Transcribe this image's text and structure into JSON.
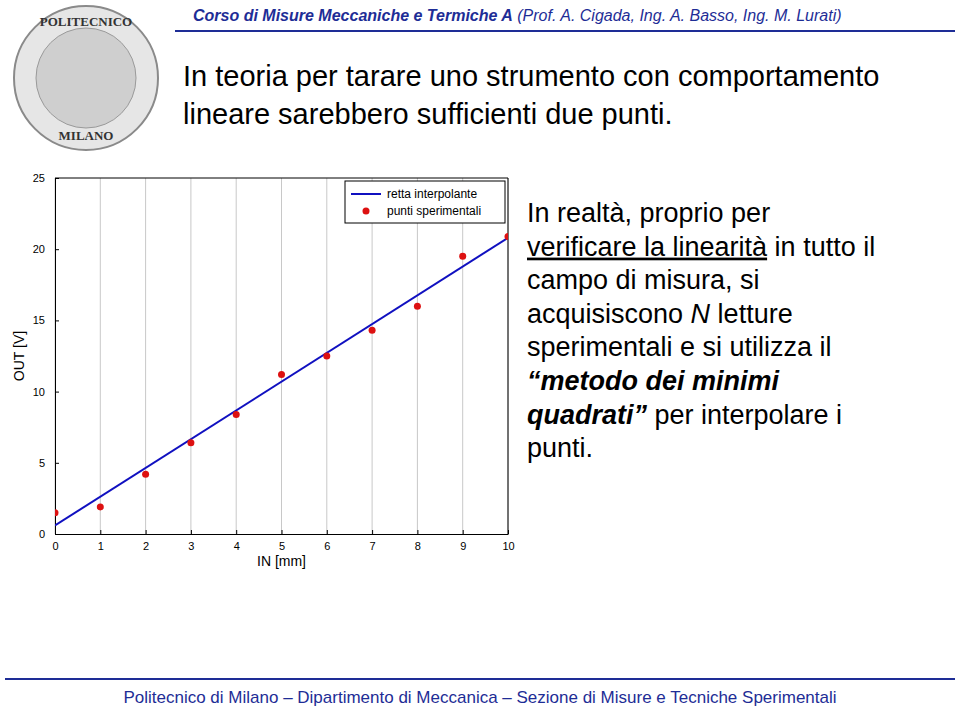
{
  "slide": {
    "logo": {
      "top": "POLITECNICO",
      "bottom": "MILANO"
    },
    "header": [
      {
        "text": "Corso di Misure Meccaniche e Termiche A",
        "style": "bold-italic"
      },
      {
        "text": " (Prof. A. Cigada, Ing. A. Basso, Ing. M. Lurati)",
        "style": "italic"
      }
    ],
    "title": [
      "In teoria per tarare uno strumento con comportamento",
      "lineare sarebbero sufficienti due punti."
    ],
    "body": [
      [
        {
          "text": "In realtà, proprio per",
          "style": "plain"
        }
      ],
      [
        {
          "text": "verificare la linearità",
          "style": "underline"
        },
        {
          "text": " in tutto il",
          "style": "plain"
        }
      ],
      [
        {
          "text": "campo di misura, si",
          "style": "plain"
        }
      ],
      [
        {
          "text": "acquisiscono ",
          "style": "plain"
        },
        {
          "text": "N",
          "style": "italic"
        },
        {
          "text": " letture",
          "style": "plain"
        }
      ],
      [
        {
          "text": "sperimentali e si utilizza il",
          "style": "plain"
        }
      ],
      [
        {
          "text": "“metodo dei minimi",
          "style": "bold-italic"
        }
      ],
      [
        {
          "text": "quadrati”",
          "style": "bold-italic"
        },
        {
          "text": " per interpolare i",
          "style": "plain"
        }
      ],
      [
        {
          "text": "punti.",
          "style": "plain"
        }
      ]
    ],
    "footer": "Politecnico di Milano – Dipartimento di Meccanica – Sezione di Misure e Tecniche Sperimentali"
  },
  "chart_data": {
    "type": "scatter",
    "x_label": "IN [mm]",
    "y_label": "OUT [V]",
    "xlim": [
      0,
      10
    ],
    "ylim": [
      0,
      25
    ],
    "xticks": [
      0,
      1,
      2,
      3,
      4,
      5,
      6,
      7,
      8,
      9,
      10
    ],
    "yticks": [
      0,
      5,
      10,
      15,
      20,
      25
    ],
    "grid": true,
    "legend": "upper right",
    "series": [
      {
        "name": "retta interpolante",
        "type": "line",
        "color": "#1010c0",
        "line_style": "solid",
        "x": [
          0,
          10
        ],
        "values": [
          0.6,
          20.8
        ]
      },
      {
        "name": "punti sperimentali",
        "type": "scatter",
        "color": "#dd1111",
        "marker": "circle",
        "x": [
          0,
          1,
          2,
          3,
          4,
          5,
          6,
          7,
          8,
          9,
          10
        ],
        "values": [
          1.5,
          1.9,
          4.2,
          6.4,
          8.4,
          11.2,
          12.5,
          14.3,
          16.0,
          19.5,
          20.9
        ]
      }
    ]
  }
}
